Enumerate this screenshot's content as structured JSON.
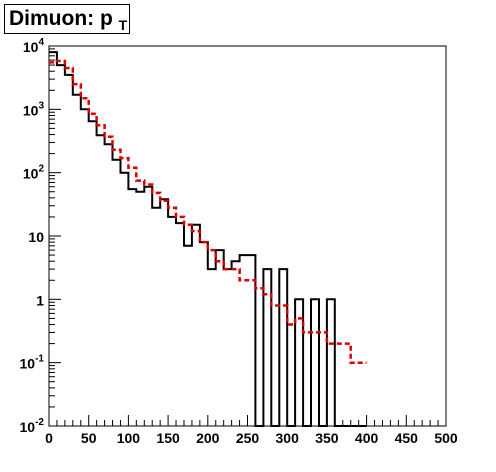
{
  "chart_data": {
    "type": "histogram",
    "title": "Dimuon: p",
    "title_subscript": "T",
    "xlabel": "",
    "ylabel": "",
    "xlim": [
      0,
      500
    ],
    "ylim": [
      0.01,
      10000
    ],
    "y_scale": "log",
    "grid": false,
    "legend": "none",
    "bin_width": 10,
    "x_ticks": [
      0,
      50,
      100,
      150,
      200,
      250,
      300,
      350,
      400,
      450,
      500
    ],
    "y_ticks": [
      {
        "value": 10000,
        "base": "10",
        "exp": "4"
      },
      {
        "value": 1000,
        "base": "10",
        "exp": "3"
      },
      {
        "value": 100,
        "base": "10",
        "exp": "2"
      },
      {
        "value": 10,
        "base": "10",
        "exp": ""
      },
      {
        "value": 1,
        "base": "1",
        "exp": ""
      },
      {
        "value": 0.1,
        "base": "10",
        "exp": "-1"
      },
      {
        "value": 0.01,
        "base": "10",
        "exp": "-2"
      }
    ],
    "series": [
      {
        "color": "#000000",
        "style": "solid",
        "values": [
          8000,
          5000,
          3500,
          1700,
          1000,
          650,
          390,
          280,
          160,
          100,
          55,
          50,
          60,
          28,
          38,
          20,
          16,
          7,
          15,
          8,
          3,
          6,
          3,
          4,
          5,
          5,
          0,
          3,
          0,
          3,
          0,
          1,
          0,
          1,
          0,
          1,
          0,
          0,
          0,
          0
        ]
      },
      {
        "color": "#dd0000",
        "style": "dashed",
        "values": [
          5500,
          5800,
          4500,
          2500,
          1500,
          850,
          560,
          370,
          230,
          170,
          120,
          75,
          65,
          48,
          36,
          28,
          20,
          15,
          12,
          8,
          6,
          4,
          3,
          3,
          2,
          2,
          1.5,
          1.2,
          0.8,
          0.8,
          0.4,
          0.5,
          0.3,
          0.3,
          0.3,
          0.2,
          0.2,
          0.2,
          0.1,
          0.1
        ]
      }
    ]
  }
}
